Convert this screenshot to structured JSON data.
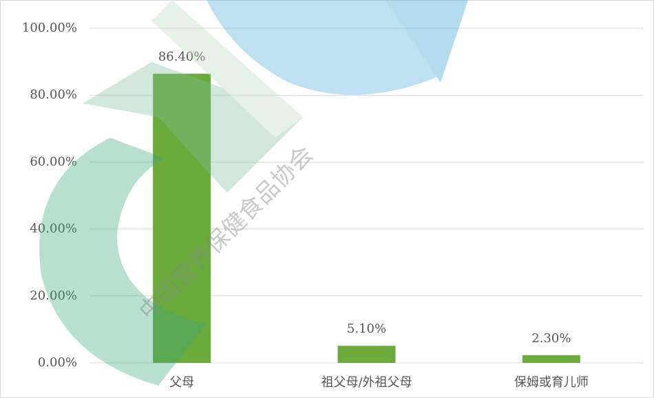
{
  "chart_data": {
    "type": "bar",
    "categories": [
      "父母",
      "祖父母/外祖父母",
      "保姆或育儿师"
    ],
    "values": [
      86.4,
      5.1,
      2.3
    ],
    "value_labels": [
      "86.40%",
      "5.10%",
      "2.30%"
    ],
    "color": "#6aab3c",
    "ylim": [
      0,
      100
    ],
    "yticks": [
      {
        "value": 0,
        "label": "0.00%"
      },
      {
        "value": 20,
        "label": "20.00%"
      },
      {
        "value": 40,
        "label": "40.00%"
      },
      {
        "value": 60,
        "label": "60.00%"
      },
      {
        "value": 80,
        "label": "80.00%"
      },
      {
        "value": 100,
        "label": "100.00%"
      }
    ],
    "grid": true
  },
  "watermark": "中国营养保健食品协会"
}
